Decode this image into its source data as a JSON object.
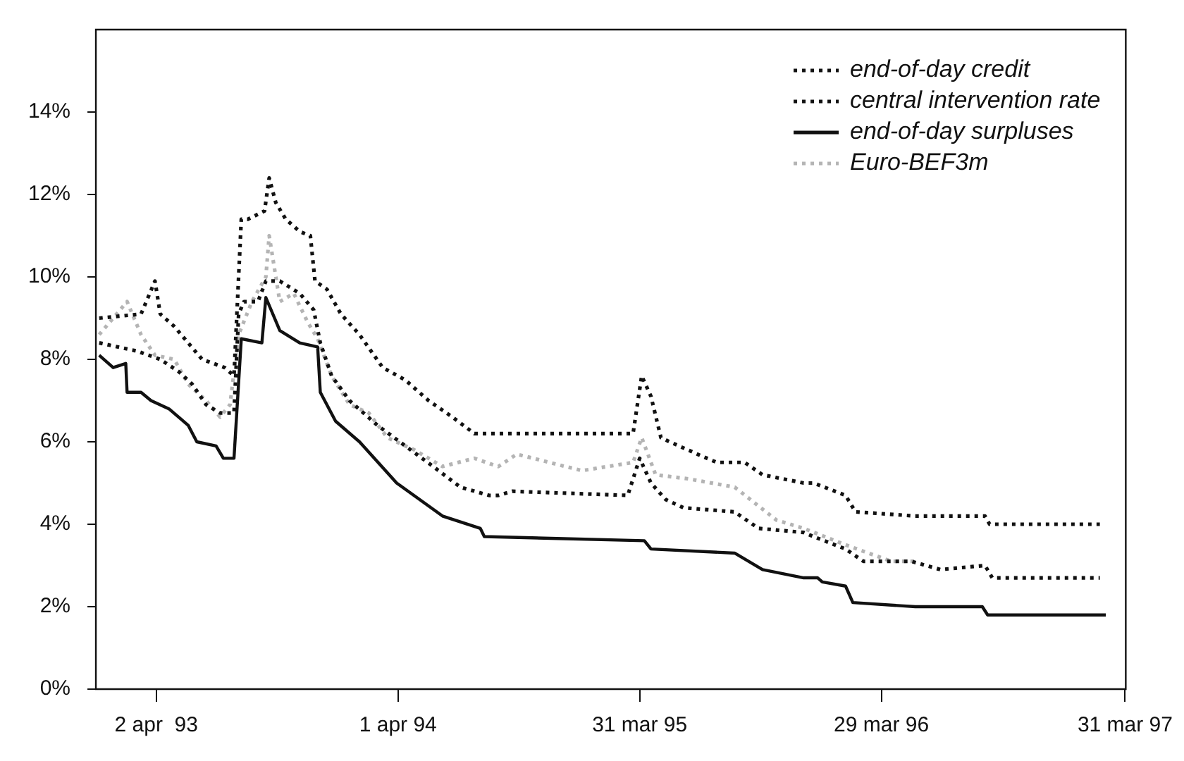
{
  "chart_data": {
    "type": "line",
    "xlim": [
      "1993-01-01",
      "1997-04-01"
    ],
    "xticks": [
      {
        "value": "1993-04-02",
        "label": "2 apr  93"
      },
      {
        "value": "1994-04-01",
        "label": "1 apr 94"
      },
      {
        "value": "1995-03-31",
        "label": "31 mar 95"
      },
      {
        "value": "1996-03-29",
        "label": "29 mar 96"
      },
      {
        "value": "1997-03-31",
        "label": "31 mar 97"
      }
    ],
    "ylim": [
      0,
      16
    ],
    "yticks": [
      {
        "value": 0,
        "label": "0%"
      },
      {
        "value": 2,
        "label": "2%"
      },
      {
        "value": 4,
        "label": "4%"
      },
      {
        "value": 6,
        "label": "6%"
      },
      {
        "value": 8,
        "label": "8%"
      },
      {
        "value": 10,
        "label": "10%"
      },
      {
        "value": 12,
        "label": "12%"
      },
      {
        "value": 14,
        "label": "14%"
      }
    ],
    "grid": false,
    "legend": "top right",
    "marker": "none",
    "series": [
      {
        "name": "end-of-day credit",
        "color": "#111111",
        "line_style": "dotted",
        "x": [
          "1993-01-06",
          "1993-03-10",
          "1993-03-31",
          "1993-04-08",
          "1993-04-29",
          "1993-06-10",
          "1993-07-14",
          "1993-07-28",
          "1993-08-08",
          "1993-08-18",
          "1993-09-12",
          "1993-09-19",
          "1993-09-29",
          "1993-10-14",
          "1993-11-04",
          "1993-11-20",
          "1993-11-27",
          "1993-12-15",
          "1994-01-05",
          "1994-02-02",
          "1994-03-09",
          "1994-04-12",
          "1994-05-17",
          "1994-06-22",
          "1994-07-25",
          "1994-08-30",
          "1995-03-21",
          "1995-04-03",
          "1995-04-17",
          "1995-05-02",
          "1995-05-15",
          "1995-06-26",
          "1995-07-25",
          "1995-09-05",
          "1995-10-02",
          "1995-12-03",
          "1995-12-18",
          "1996-02-04",
          "1996-02-19",
          "1996-05-19",
          "1996-09-01",
          "1996-09-08",
          "1997-02-21"
        ],
        "values": [
          9.0,
          9.1,
          9.9,
          9.1,
          8.8,
          8.0,
          7.8,
          7.6,
          11.4,
          11.4,
          11.6,
          12.4,
          11.8,
          11.4,
          11.1,
          11.0,
          9.9,
          9.7,
          9.1,
          8.6,
          7.8,
          7.5,
          7.0,
          6.6,
          6.2,
          6.2,
          6.2,
          7.6,
          7.1,
          6.1,
          6.0,
          5.7,
          5.5,
          5.5,
          5.2,
          5.0,
          5.0,
          4.7,
          4.3,
          4.2,
          4.2,
          4.0,
          4.0
        ]
      },
      {
        "name": "central intervention rate",
        "color": "#111111",
        "line_style": "dotted",
        "x": [
          "1993-01-06",
          "1993-03-04",
          "1993-04-08",
          "1993-05-06",
          "1993-05-26",
          "1993-06-16",
          "1993-07-07",
          "1993-07-28",
          "1993-08-04",
          "1993-08-12",
          "1993-09-02",
          "1993-09-14",
          "1993-10-05",
          "1993-11-04",
          "1993-11-25",
          "1993-12-05",
          "1993-12-22",
          "1994-01-18",
          "1994-03-01",
          "1994-04-12",
          "1994-05-24",
          "1994-07-04",
          "1994-08-16",
          "1994-08-30",
          "1994-09-20",
          "1995-03-13",
          "1995-03-31",
          "1995-04-17",
          "1995-05-09",
          "1995-06-05",
          "1995-08-21",
          "1995-09-26",
          "1995-12-03",
          "1995-12-18",
          "1996-02-04",
          "1996-03-02",
          "1996-05-13",
          "1996-06-26",
          "1996-09-01",
          "1996-09-12",
          "1997-02-21"
        ],
        "values": [
          8.4,
          8.2,
          8.0,
          7.7,
          7.4,
          6.9,
          6.7,
          6.7,
          9.1,
          9.4,
          9.4,
          9.9,
          9.9,
          9.6,
          9.2,
          8.4,
          7.6,
          7.0,
          6.4,
          5.9,
          5.4,
          4.9,
          4.7,
          4.7,
          4.8,
          4.7,
          5.6,
          5.0,
          4.6,
          4.4,
          4.3,
          3.9,
          3.8,
          3.7,
          3.4,
          3.1,
          3.1,
          2.9,
          3.0,
          2.7,
          2.7
        ]
      },
      {
        "name": "end-of-day surpluses",
        "color": "#111111",
        "line_style": "solid",
        "x": [
          "1993-01-06",
          "1993-01-27",
          "1993-02-15",
          "1993-02-17",
          "1993-03-10",
          "1993-03-25",
          "1993-04-21",
          "1993-05-20",
          "1993-06-02",
          "1993-07-01",
          "1993-07-12",
          "1993-07-28",
          "1993-08-08",
          "1993-09-08",
          "1993-09-14",
          "1993-10-05",
          "1993-11-04",
          "1993-12-01",
          "1993-12-05",
          "1993-12-28",
          "1994-02-02",
          "1994-03-30",
          "1994-06-07",
          "1994-08-03",
          "1994-08-06",
          "1994-08-09",
          "1995-04-07",
          "1995-04-17",
          "1995-08-21",
          "1995-10-02",
          "1995-12-03",
          "1995-12-24",
          "1995-12-31",
          "1996-02-04",
          "1996-02-15",
          "1996-05-19",
          "1996-08-28",
          "1996-09-05",
          "1997-03-02"
        ],
        "values": [
          8.1,
          7.8,
          7.9,
          7.2,
          7.2,
          7.0,
          6.8,
          6.4,
          6.0,
          5.9,
          5.6,
          5.6,
          8.5,
          8.4,
          9.5,
          8.7,
          8.4,
          8.3,
          7.2,
          6.5,
          6.0,
          5.0,
          4.2,
          3.9,
          3.8,
          3.7,
          3.6,
          3.4,
          3.3,
          2.9,
          2.7,
          2.7,
          2.6,
          2.5,
          2.1,
          2.0,
          2.0,
          1.8,
          1.8
        ]
      },
      {
        "name": "Euro-BEF3m",
        "color": "#b4b4b4",
        "line_style": "dotted",
        "x": [
          "1993-01-06",
          "1993-02-17",
          "1993-03-10",
          "1993-03-31",
          "1993-04-29",
          "1993-05-20",
          "1993-06-16",
          "1993-07-07",
          "1993-07-22",
          "1993-08-04",
          "1993-08-24",
          "1993-09-14",
          "1993-09-19",
          "1993-10-05",
          "1993-10-26",
          "1993-11-16",
          "1993-12-01",
          "1993-12-22",
          "1994-01-18",
          "1994-02-16",
          "1994-03-16",
          "1994-04-26",
          "1994-06-07",
          "1994-07-25",
          "1994-08-30",
          "1994-09-27",
          "1995-01-03",
          "1995-03-21",
          "1995-04-03",
          "1995-04-24",
          "1995-06-13",
          "1995-08-21",
          "1995-10-23",
          "1995-12-03",
          "1996-02-04",
          "1996-04-13",
          "1996-05-19"
        ],
        "values": [
          8.6,
          9.4,
          8.6,
          8.1,
          8.0,
          7.4,
          7.0,
          6.6,
          6.9,
          8.6,
          9.4,
          10.0,
          11.0,
          9.4,
          9.6,
          8.9,
          8.5,
          7.6,
          6.9,
          6.7,
          6.1,
          5.8,
          5.4,
          5.6,
          5.4,
          5.7,
          5.3,
          5.5,
          6.1,
          5.2,
          5.1,
          4.9,
          4.1,
          3.9,
          3.5,
          3.1,
          3.1
        ]
      }
    ]
  }
}
